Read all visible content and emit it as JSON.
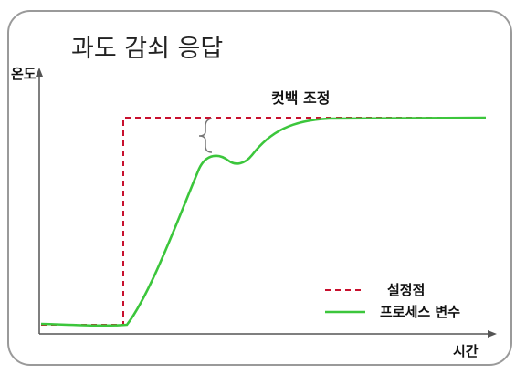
{
  "title": "과도 감쇠 응답",
  "axes": {
    "y_label": "온도",
    "x_label": "시간"
  },
  "annotation": {
    "label": "컷백 조정"
  },
  "legend": {
    "setpoint_label": "설정점",
    "process_label": "프로세스 변수"
  },
  "colors": {
    "setpoint": "#c8102e",
    "process": "#3cc63c",
    "frame": "#9a9a9a",
    "axis": "#555555",
    "bracket": "#777777"
  }
}
